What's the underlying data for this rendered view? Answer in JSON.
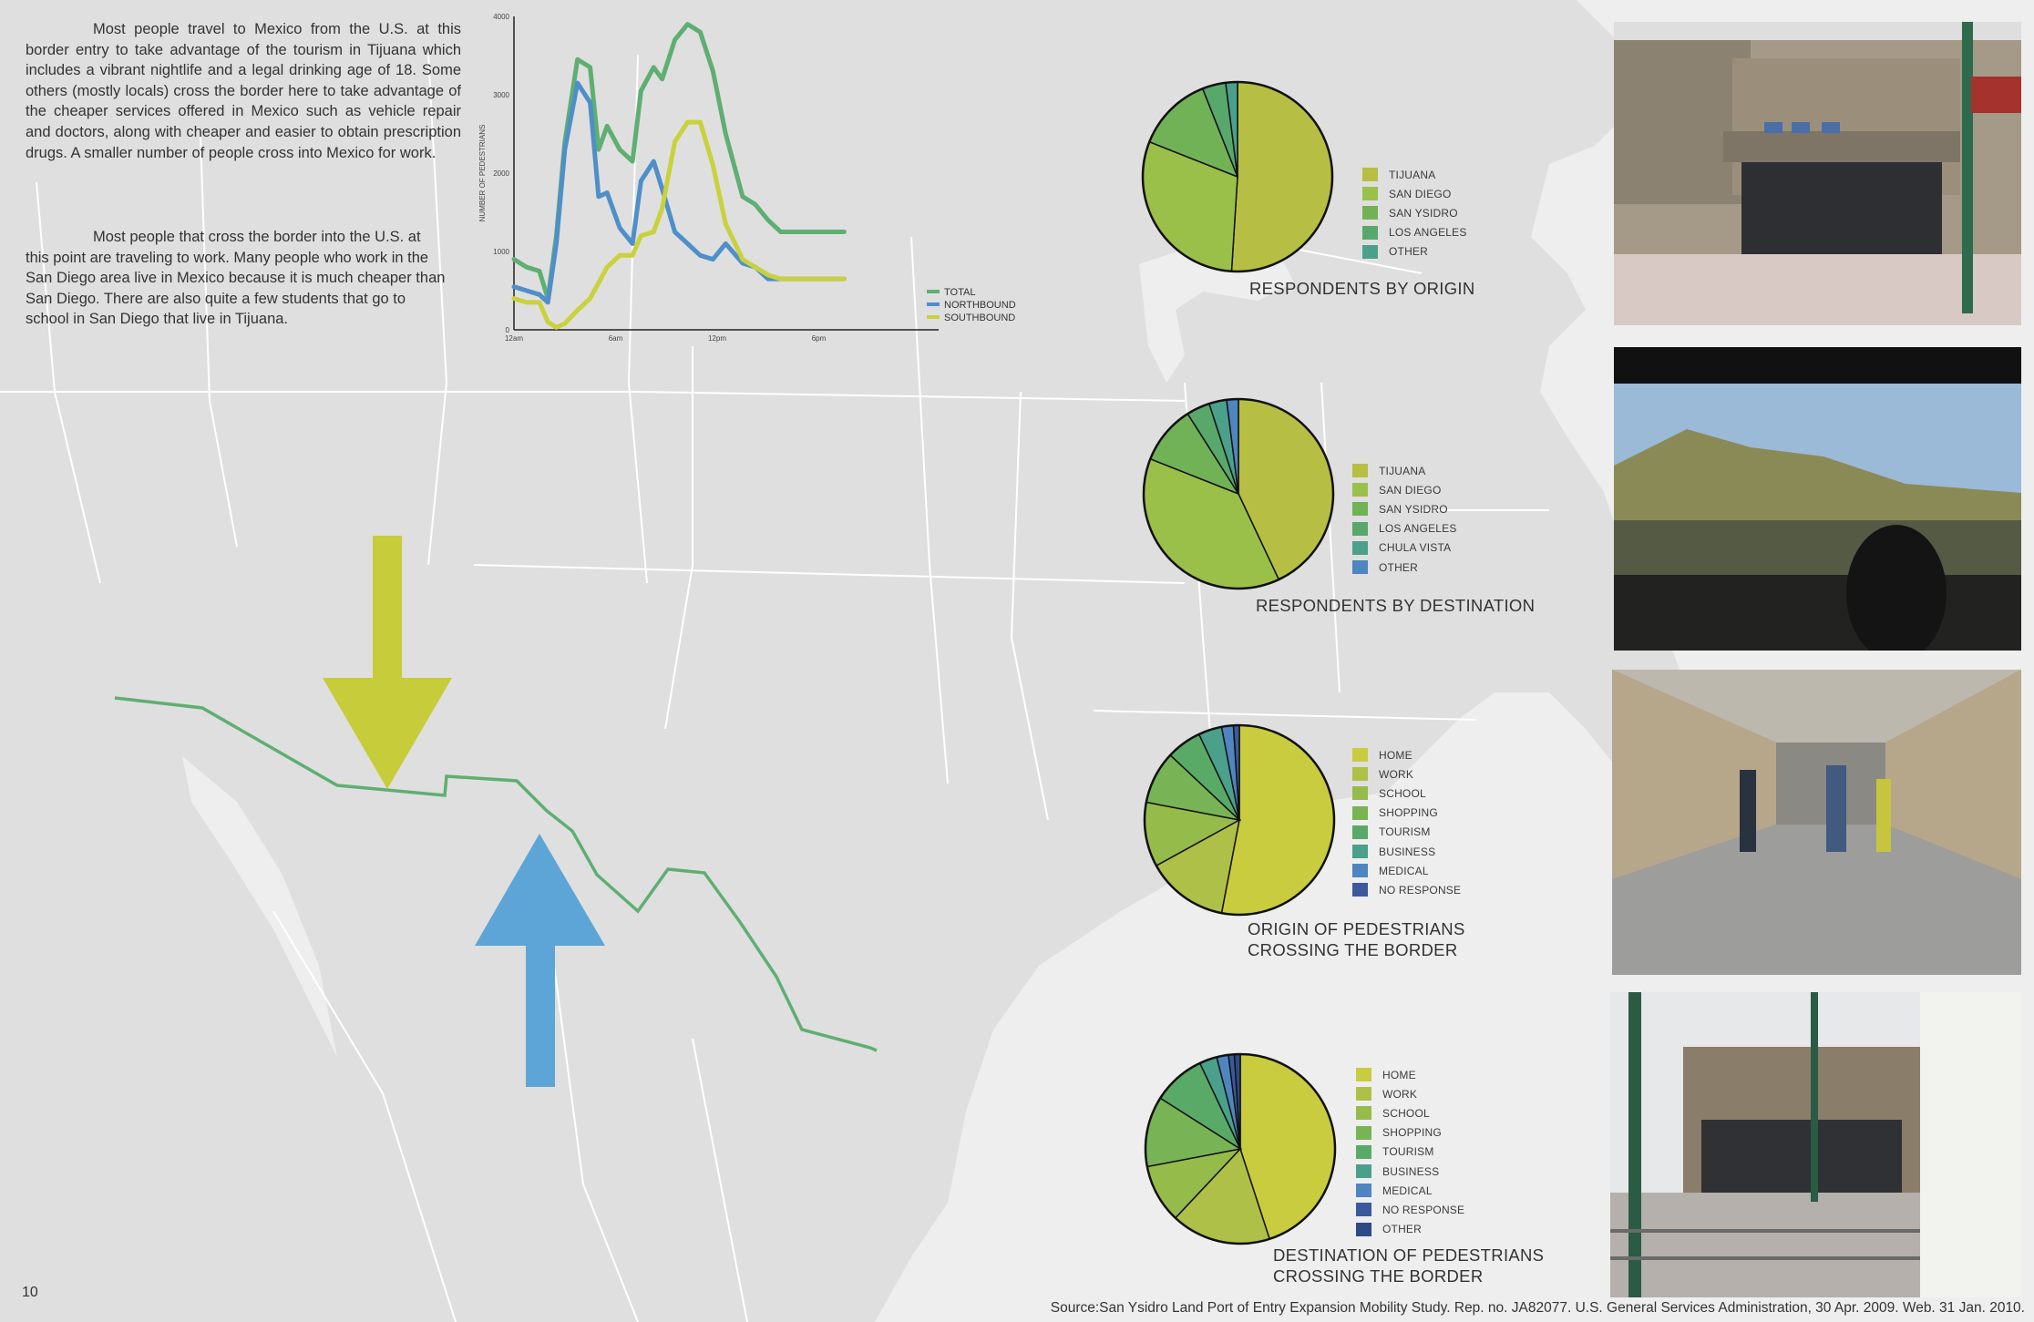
{
  "text": {
    "para1": "Most people travel to Mexico from the U.S. at this border entry to take advantage of the tourism in Tijuana which includes a vibrant nightlife and a legal drinking age of 18. Some others (mostly locals) cross the border here to take advantage of the cheaper services offered in Mexico such as vehicle repair and doctors, along with cheaper and easier to obtain prescription drugs.  A smaller number of people cross into Mexico for work.",
    "para2": "Most people that cross the border into the U.S. at this point are traveling to work.  Many people who work in the San Diego area live in Mexico because it is much cheaper than San Diego.  There are also quite a few students that go to school in San Diego that live in Tijuana.",
    "page_number": "10",
    "source": "Source:San Ysidro Land Port of Entry Expansion Mobility Study. Rep. no. JA82077. U.S. General Services Administration, 30 Apr. 2009. Web. 31 Jan. 2010."
  },
  "arrows": {
    "southbound_color": "#c7cc3a",
    "northbound_color": "#5da5d6",
    "border_color": "#5fae72"
  },
  "chart_data": [
    {
      "type": "line",
      "ylabel": "NUMBER OF PEDESTRIANS",
      "xlabel": "",
      "ylim": [
        0,
        4000
      ],
      "yticks": [
        0,
        1000,
        2000,
        3000,
        4000
      ],
      "xticks": [
        "12am",
        "6am",
        "12pm",
        "6pm"
      ],
      "x": [
        0,
        0.75,
        1.5,
        2,
        2.5,
        3,
        3.75,
        4.5,
        5,
        5.5,
        6.25,
        7,
        7.5,
        8.25,
        8.75,
        9.5,
        10.25,
        11,
        11.75,
        12.5,
        13.5,
        14.25,
        15,
        15.75,
        16.5,
        17.25,
        18,
        18.75,
        19.5,
        20.25,
        21,
        21.75,
        22.5
      ],
      "series": [
        {
          "name": "TOTAL",
          "color": "#5fae72",
          "values": [
            900,
            800,
            750,
            400,
            1200,
            2400,
            3450,
            3350,
            2300,
            2600,
            2300,
            2150,
            3050,
            3350,
            3200,
            3700,
            3900,
            3800,
            3300,
            2500,
            1700,
            1600,
            1400,
            1250,
            1250,
            1250,
            1250,
            1250,
            1250,
            1250,
            1250,
            1250,
            1250
          ]
        },
        {
          "name": "NORTHBOUND",
          "color": "#4f8fc9",
          "values": [
            550,
            500,
            450,
            350,
            1100,
            2300,
            3150,
            2900,
            1700,
            1750,
            1300,
            1100,
            1900,
            2150,
            1800,
            1250,
            1100,
            950,
            900,
            1100,
            850,
            800,
            650,
            650,
            650,
            650,
            650,
            650,
            650,
            650,
            650,
            650,
            650
          ]
        },
        {
          "name": "SOUTHBOUND",
          "color": "#c9d13c",
          "values": [
            400,
            350,
            350,
            100,
            30,
            80,
            250,
            400,
            600,
            800,
            950,
            950,
            1200,
            1250,
            1550,
            2400,
            2650,
            2650,
            2100,
            1350,
            900,
            800,
            700,
            650,
            650,
            650,
            650,
            650,
            650,
            650,
            650,
            650,
            650
          ]
        }
      ]
    },
    {
      "type": "pie",
      "title": "RESPONDENTS BY ORIGIN",
      "labels": [
        "TIJUANA",
        "SAN DIEGO",
        "SAN YSIDRO",
        "LOS ANGELES",
        "OTHER"
      ],
      "values": [
        51,
        30,
        13,
        4,
        2
      ],
      "colors": [
        "#b6bf44",
        "#9bc04a",
        "#72b257",
        "#58a86b",
        "#4ba08b"
      ]
    },
    {
      "type": "pie",
      "title": "RESPONDENTS BY DESTINATION",
      "labels": [
        "TIJUANA",
        "SAN DIEGO",
        "SAN YSIDRO",
        "LOS ANGELES",
        "CHULA VISTA",
        "OTHER"
      ],
      "values": [
        43,
        38,
        10,
        4,
        3,
        2
      ],
      "colors": [
        "#b6bf44",
        "#9bc04a",
        "#72b257",
        "#58a86b",
        "#4ba08b",
        "#4f85c0"
      ]
    },
    {
      "type": "pie",
      "title": "ORIGIN OF PEDESTRIANS CROSSING THE BORDER",
      "labels": [
        "HOME",
        "WORK",
        "SCHOOL",
        "SHOPPING",
        "TOURISM",
        "BUSINESS",
        "MEDICAL",
        "NO RESPONSE"
      ],
      "values": [
        53,
        14,
        11,
        9,
        6,
        4,
        2,
        1
      ],
      "colors": [
        "#c8cc3e",
        "#afc048",
        "#95bc4a",
        "#78b455",
        "#5aaa67",
        "#4ba08b",
        "#4f85c0",
        "#3b5a9e"
      ]
    },
    {
      "type": "pie",
      "title": "DESTINATION OF PEDESTRIANS CROSSING THE BORDER",
      "labels": [
        "HOME",
        "WORK",
        "SCHOOL",
        "SHOPPING",
        "TOURISM",
        "BUSINESS",
        "MEDICAL",
        "NO RESPONSE",
        "OTHER"
      ],
      "values": [
        45,
        17,
        10,
        12,
        9,
        3,
        2,
        1,
        1
      ],
      "colors": [
        "#c8cc3e",
        "#afc048",
        "#95bc4a",
        "#78b455",
        "#5aaa67",
        "#4ba08b",
        "#4f85c0",
        "#3b5a9e",
        "#2e4a86"
      ]
    }
  ]
}
